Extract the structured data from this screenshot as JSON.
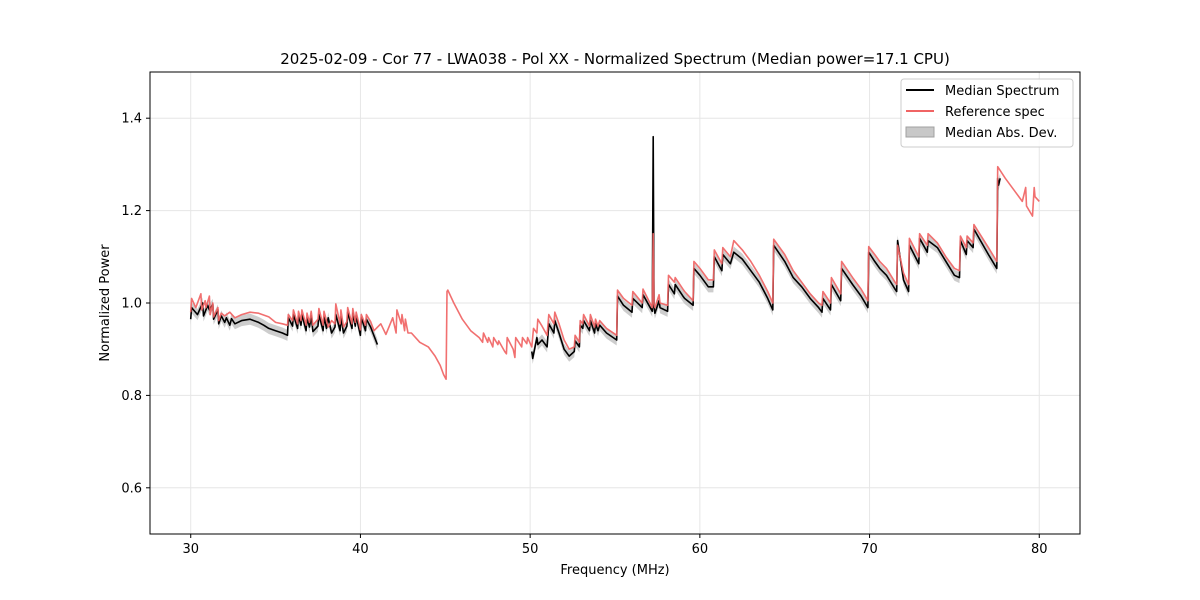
{
  "chart_data": {
    "type": "line",
    "title": "2025-02-09 - Cor 77 - LWA038 - Pol XX - Normalized Spectrum (Median power=17.1 CPU)",
    "xlabel": "Frequency (MHz)",
    "ylabel": "Normalized Power",
    "xlim": [
      27.6,
      82.4
    ],
    "ylim": [
      0.5,
      1.5
    ],
    "xticks": [
      30,
      40,
      50,
      60,
      70,
      80
    ],
    "xtick_labels": [
      "30",
      "40",
      "50",
      "60",
      "70",
      "80"
    ],
    "yticks": [
      0.6,
      0.8,
      1.0,
      1.2,
      1.4
    ],
    "ytick_labels": [
      "0.6",
      "0.8",
      "1.0",
      "1.2",
      "1.4"
    ],
    "grid": true,
    "legend_position": "top-right",
    "legend": [
      {
        "label": "Median Spectrum",
        "kind": "line",
        "color": "#000000"
      },
      {
        "label": "Reference spec",
        "kind": "line",
        "color": "#f06464"
      },
      {
        "label": "Median Abs. Dev.",
        "kind": "band",
        "color": "#c8c8c8"
      }
    ],
    "series": [
      {
        "name": "Median Spectrum",
        "color": "#000000",
        "segments": [
          {
            "x": [
              30.0,
              30.05,
              30.4,
              30.7,
              30.75,
              31.0,
              31.1,
              31.3,
              31.35,
              31.6,
              31.65,
              31.8,
              32.0,
              32.1,
              32.3,
              32.4,
              32.6,
              33.0,
              33.5,
              34.0,
              34.3,
              34.6,
              35.0,
              35.4,
              35.7,
              35.75,
              36.0,
              36.05,
              36.3,
              36.35,
              36.5,
              36.55,
              36.8,
              36.85,
              37.0,
              37.1,
              37.2,
              37.5,
              37.55,
              37.8,
              37.85,
              38.0,
              38.1,
              38.3,
              38.5,
              38.55,
              38.8,
              38.85,
              39.0,
              39.2,
              39.25,
              39.5,
              39.55,
              39.7,
              39.75,
              40.0,
              40.05,
              40.3,
              40.35,
              40.6,
              41.0
            ],
            "y": [
              0.965,
              0.99,
              0.975,
              1.0,
              0.972,
              0.995,
              0.985,
              0.997,
              0.965,
              0.985,
              0.955,
              0.972,
              0.958,
              0.968,
              0.952,
              0.966,
              0.955,
              0.962,
              0.965,
              0.958,
              0.952,
              0.945,
              0.94,
              0.935,
              0.93,
              0.968,
              0.95,
              0.975,
              0.945,
              0.972,
              0.952,
              0.975,
              0.94,
              0.968,
              0.948,
              0.972,
              0.938,
              0.95,
              0.975,
              0.94,
              0.97,
              0.945,
              0.968,
              0.935,
              0.948,
              0.975,
              0.94,
              0.97,
              0.935,
              0.95,
              0.98,
              0.945,
              0.978,
              0.95,
              0.972,
              0.93,
              0.968,
              0.94,
              0.965,
              0.948,
              0.91
            ]
          },
          {
            "x": [
              50.1,
              50.15,
              50.4,
              50.45,
              50.7,
              51.0,
              51.1,
              51.4,
              51.45,
              51.7,
              52.0,
              52.3,
              52.6,
              52.65,
              52.9,
              52.95,
              53.1,
              53.15,
              53.5,
              53.55,
              53.8,
              53.85,
              54.0,
              54.1,
              54.5,
              55.1,
              55.15,
              55.5,
              56.0,
              56.05,
              56.6,
              56.65,
              57.2,
              57.25,
              57.3,
              57.35,
              57.6,
              57.65,
              58.1,
              58.15,
              58.5,
              58.55,
              59.0,
              59.1,
              59.6,
              59.65,
              60.0,
              60.5,
              60.8,
              60.85,
              61.3,
              61.35,
              61.8,
              62.0,
              62.5,
              63.0,
              63.5,
              64.0,
              64.3,
              64.35,
              65.0,
              65.5,
              66.0,
              66.5,
              67.0,
              67.2,
              67.25,
              67.7,
              67.75,
              68.3,
              68.35,
              69.0,
              69.5,
              69.9,
              69.95,
              70.3,
              70.6,
              71.0,
              71.5,
              71.6,
              71.65,
              72.0,
              72.3,
              72.35,
              72.9,
              72.95,
              73.4,
              73.45,
              74.0,
              74.5,
              75.0,
              75.3,
              75.35,
              75.7,
              75.75,
              76.1,
              76.15,
              77.0,
              77.5,
              77.55,
              77.6,
              77.7
            ],
            "y": [
              0.895,
              0.88,
              0.925,
              0.91,
              0.92,
              0.905,
              0.955,
              0.935,
              0.962,
              0.935,
              0.9,
              0.885,
              0.895,
              0.918,
              0.905,
              0.952,
              0.945,
              0.962,
              0.94,
              0.962,
              0.935,
              0.955,
              0.94,
              0.952,
              0.935,
              0.92,
              1.015,
              0.995,
              0.98,
              1.01,
              0.99,
              1.018,
              0.982,
              1.36,
              0.99,
              0.978,
              1.005,
              0.99,
              0.982,
              1.04,
              1.02,
              1.04,
              1.015,
              1.01,
              0.995,
              1.075,
              1.06,
              1.035,
              1.035,
              1.1,
              1.07,
              1.105,
              1.085,
              1.11,
              1.095,
              1.07,
              1.045,
              1.01,
              0.985,
              1.125,
              1.09,
              1.055,
              1.035,
              1.01,
              0.99,
              0.98,
              1.01,
              0.985,
              1.04,
              1.005,
              1.075,
              1.04,
              1.015,
              0.99,
              1.11,
              1.09,
              1.075,
              1.06,
              1.03,
              1.025,
              1.135,
              1.05,
              1.025,
              1.125,
              1.085,
              1.14,
              1.11,
              1.135,
              1.12,
              1.09,
              1.06,
              1.055,
              1.135,
              1.105,
              1.135,
              1.12,
              1.16,
              1.105,
              1.075,
              1.27,
              1.255,
              1.27
            ]
          }
        ]
      },
      {
        "name": "Reference spec",
        "color": "#f06464",
        "segments": [
          {
            "x": [
              30.0,
              30.05,
              30.3,
              30.6,
              30.65,
              30.85,
              30.9,
              31.1,
              31.15,
              31.3,
              31.35,
              31.6,
              31.65,
              31.8,
              32.0,
              32.3,
              32.6,
              33.0,
              33.5,
              34.0,
              34.6,
              35.0,
              35.4,
              35.7,
              35.75,
              36.0,
              36.05,
              36.3,
              36.35,
              36.5,
              36.55,
              36.8,
              36.85,
              37.0,
              37.1,
              37.2,
              37.5,
              37.55,
              37.8,
              37.85,
              38.1,
              38.3,
              38.5,
              38.55,
              38.8,
              38.85,
              39.0,
              39.2,
              39.25,
              39.5,
              39.55,
              39.7,
              39.75,
              40.0,
              40.05,
              40.3,
              40.35,
              40.6,
              40.8,
              41.2,
              41.5,
              41.9,
              42.1,
              42.15,
              42.4,
              42.45,
              42.6,
              42.65,
              42.8,
              43.0,
              43.5,
              44.0,
              44.4,
              44.7,
              44.9,
              45.05,
              45.1,
              45.15,
              45.5,
              46.0,
              46.5,
              47.0,
              47.2,
              47.25,
              47.5,
              47.55,
              47.8,
              47.85,
              48.1,
              48.15,
              48.5,
              48.6,
              48.65,
              49.0,
              49.1,
              49.15,
              49.5,
              49.55,
              49.8,
              49.85,
              50.1,
              50.2,
              50.4,
              50.45,
              50.7,
              51.0,
              51.1,
              51.4,
              51.45,
              51.7,
              52.0,
              52.3,
              52.6,
              52.65,
              52.9,
              52.95,
              53.1,
              53.15,
              53.5,
              53.55,
              53.8,
              53.85,
              54.0,
              54.1,
              54.5,
              55.1,
              55.15,
              55.5,
              56.0,
              56.05,
              56.6,
              56.65,
              57.2,
              57.25,
              57.3,
              57.35,
              57.6,
              57.65,
              58.1,
              58.15,
              58.5,
              58.55,
              59.0,
              59.1,
              59.6,
              59.65,
              60.0,
              60.5,
              60.8,
              60.85,
              61.3,
              61.35,
              61.8,
              62.0,
              62.5,
              63.0,
              63.5,
              64.0,
              64.3,
              64.35,
              65.0,
              65.5,
              66.0,
              66.5,
              67.0,
              67.2,
              67.25,
              67.7,
              67.75,
              68.3,
              68.35,
              69.0,
              69.5,
              69.9,
              69.95,
              70.3,
              70.6,
              71.0,
              71.5,
              71.6,
              71.65,
              72.0,
              72.3,
              72.35,
              72.9,
              72.95,
              73.4,
              73.45,
              74.0,
              74.5,
              75.0,
              75.3,
              75.35,
              75.7,
              75.75,
              76.1,
              76.15,
              77.0,
              77.5,
              77.55,
              78.0,
              78.5,
              79.0,
              79.2,
              79.25,
              79.6,
              79.7,
              79.75,
              80.0
            ],
            "y": [
              0.98,
              1.01,
              0.99,
              1.02,
              0.985,
              1.005,
              0.99,
              1.015,
              0.975,
              1.0,
              0.97,
              0.99,
              0.962,
              0.978,
              0.972,
              0.98,
              0.968,
              0.975,
              0.98,
              0.978,
              0.97,
              0.958,
              0.955,
              0.952,
              0.975,
              0.962,
              0.985,
              0.955,
              0.982,
              0.962,
              0.985,
              0.952,
              0.978,
              0.958,
              0.982,
              0.952,
              0.965,
              0.988,
              0.952,
              0.982,
              0.948,
              0.962,
              0.955,
              0.998,
              0.955,
              0.985,
              0.948,
              0.96,
              0.99,
              0.955,
              0.988,
              0.958,
              0.98,
              0.942,
              0.975,
              0.952,
              0.975,
              0.96,
              0.94,
              0.955,
              0.932,
              0.968,
              0.935,
              0.985,
              0.955,
              0.975,
              0.94,
              0.965,
              0.935,
              0.935,
              0.915,
              0.905,
              0.885,
              0.865,
              0.845,
              0.835,
              1.025,
              1.028,
              1.0,
              0.965,
              0.94,
              0.925,
              0.915,
              0.935,
              0.915,
              0.925,
              0.905,
              0.925,
              0.91,
              0.918,
              0.895,
              0.89,
              0.925,
              0.9,
              0.882,
              0.925,
              0.905,
              0.925,
              0.912,
              0.925,
              0.905,
              0.945,
              0.935,
              0.965,
              0.95,
              0.93,
              0.975,
              0.955,
              0.98,
              0.955,
              0.92,
              0.9,
              0.905,
              0.93,
              0.915,
              0.962,
              0.955,
              0.975,
              0.95,
              0.975,
              0.948,
              0.965,
              0.95,
              0.962,
              0.945,
              0.93,
              1.028,
              1.01,
              0.995,
              1.025,
              1.0,
              1.03,
              0.99,
              1.15,
              0.998,
              0.99,
              1.018,
              1.0,
              0.995,
              1.06,
              1.045,
              1.055,
              1.03,
              1.025,
              1.005,
              1.09,
              1.075,
              1.05,
              1.05,
              1.115,
              1.085,
              1.12,
              1.1,
              1.135,
              1.115,
              1.09,
              1.06,
              1.025,
              1.0,
              1.138,
              1.105,
              1.07,
              1.045,
              1.02,
              1.0,
              0.995,
              1.025,
              1.0,
              1.055,
              1.02,
              1.09,
              1.055,
              1.03,
              1.005,
              1.122,
              1.105,
              1.09,
              1.075,
              1.045,
              1.04,
              1.125,
              1.065,
              1.04,
              1.14,
              1.1,
              1.15,
              1.125,
              1.15,
              1.13,
              1.1,
              1.075,
              1.07,
              1.145,
              1.12,
              1.145,
              1.13,
              1.17,
              1.12,
              1.09,
              1.295,
              1.27,
              1.245,
              1.22,
              1.25,
              1.21,
              1.188,
              1.25,
              1.23,
              1.22
            ]
          }
        ]
      }
    ],
    "mad_band": {
      "name": "Median Abs. Dev.",
      "color": "#c8c8c8",
      "halfwidth": 0.012
    }
  }
}
